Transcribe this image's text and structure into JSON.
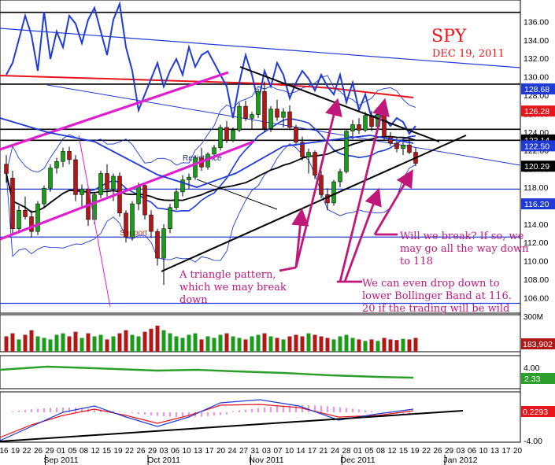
{
  "chart_data": [
    {
      "type": "candlestick",
      "title": "SPY",
      "subtitle": "DEC 19, 2011",
      "ylim": [
        104.5,
        138
      ],
      "y_ticks": [
        106,
        108,
        110,
        112,
        114,
        116,
        118,
        120,
        122,
        124,
        126,
        128,
        130,
        132,
        134,
        136
      ],
      "y_tick_labels": [
        "106.00",
        "108.00",
        "110.00",
        "112.00",
        "114.00",
        "116.00",
        "118.00",
        "120.00",
        "122.00",
        "124.00",
        "126.00",
        "128.00",
        "130.00",
        "132.00",
        "134.00",
        "136.00"
      ],
      "price_tags": [
        {
          "value": 128.68,
          "label": "128.68",
          "color": "#1f3ad6"
        },
        {
          "value": 126.28,
          "label": "126.28",
          "color": "#e8141c"
        },
        {
          "value": 123.14,
          "label": "123.14",
          "color": "#000000"
        },
        {
          "value": 122.5,
          "label": "122.50",
          "color": "#1f3ad6"
        },
        {
          "value": 120.29,
          "label": "120.29",
          "color": "#000000"
        },
        {
          "value": 116.2,
          "label": "116.20",
          "color": "#1f3ad6"
        }
      ],
      "horizontal_levels": [
        137,
        129.2,
        124.3,
        123.1,
        117.8,
        112.6,
        105.4
      ],
      "level_labels": [
        {
          "text": "Resistance",
          "value": 120.9,
          "day_index": 28
        },
        {
          "text": "Support",
          "value": 112.8,
          "day_index": 18
        }
      ],
      "candles": [
        {
          "o": 120.5,
          "h": 121.5,
          "l": 118.5,
          "c": 119.5
        },
        {
          "o": 119,
          "h": 119.8,
          "l": 112.8,
          "c": 113.5
        },
        {
          "o": 113.5,
          "h": 116,
          "l": 113,
          "c": 115.5
        },
        {
          "o": 115.5,
          "h": 117,
          "l": 114.5,
          "c": 114.8
        },
        {
          "o": 114.8,
          "h": 115.5,
          "l": 112.6,
          "c": 113.2
        },
        {
          "o": 113.2,
          "h": 116.5,
          "l": 112.8,
          "c": 116.2
        },
        {
          "o": 116.2,
          "h": 118.2,
          "l": 115.8,
          "c": 117.9
        },
        {
          "o": 117.9,
          "h": 120.5,
          "l": 117.5,
          "c": 120.1
        },
        {
          "o": 120.1,
          "h": 121.2,
          "l": 119.5,
          "c": 120.8
        },
        {
          "o": 120.8,
          "h": 122.3,
          "l": 120.2,
          "c": 121.9
        },
        {
          "o": 121.9,
          "h": 122.4,
          "l": 120.5,
          "c": 121
        },
        {
          "o": 121,
          "h": 121.5,
          "l": 116.5,
          "c": 117.2
        },
        {
          "o": 117.2,
          "h": 118.3,
          "l": 115.8,
          "c": 117.8
        },
        {
          "o": 117.8,
          "h": 118.2,
          "l": 113.8,
          "c": 114.5
        },
        {
          "o": 114.5,
          "h": 117.5,
          "l": 114,
          "c": 117.2
        },
        {
          "o": 117.2,
          "h": 119.8,
          "l": 116.8,
          "c": 119.5
        },
        {
          "o": 119.5,
          "h": 120.5,
          "l": 117,
          "c": 117.8
        },
        {
          "o": 117.8,
          "h": 119.5,
          "l": 116.5,
          "c": 119.2
        },
        {
          "o": 119.2,
          "h": 119.6,
          "l": 114.8,
          "c": 115.2
        },
        {
          "o": 115.2,
          "h": 115.5,
          "l": 112,
          "c": 112.6
        },
        {
          "o": 112.6,
          "h": 116.5,
          "l": 112.2,
          "c": 116.2
        },
        {
          "o": 116.2,
          "h": 118.5,
          "l": 115.5,
          "c": 118.2
        },
        {
          "o": 118.2,
          "h": 118.5,
          "l": 114.5,
          "c": 115
        },
        {
          "o": 115,
          "h": 115.5,
          "l": 112.5,
          "c": 113.2
        },
        {
          "o": 113.2,
          "h": 113.5,
          "l": 109.5,
          "c": 110.3
        },
        {
          "o": 110.3,
          "h": 114,
          "l": 107.4,
          "c": 113.5
        },
        {
          "o": 113.5,
          "h": 116.2,
          "l": 113,
          "c": 115.8
        },
        {
          "o": 115.8,
          "h": 117.9,
          "l": 115.5,
          "c": 117.5
        },
        {
          "o": 117.5,
          "h": 119.3,
          "l": 117,
          "c": 118.8
        },
        {
          "o": 118.8,
          "h": 119.5,
          "l": 117.8,
          "c": 119.1
        },
        {
          "o": 119.1,
          "h": 121.5,
          "l": 118.8,
          "c": 121.2
        },
        {
          "o": 121.2,
          "h": 122.3,
          "l": 119.8,
          "c": 120.2
        },
        {
          "o": 120.2,
          "h": 121.8,
          "l": 119.9,
          "c": 121.6
        },
        {
          "o": 121.6,
          "h": 122.6,
          "l": 121,
          "c": 122.3
        },
        {
          "o": 122.3,
          "h": 124.8,
          "l": 122,
          "c": 124.5
        },
        {
          "o": 124.5,
          "h": 125.2,
          "l": 122.8,
          "c": 123.1
        },
        {
          "o": 123.1,
          "h": 124.5,
          "l": 122.9,
          "c": 124.2
        },
        {
          "o": 124.2,
          "h": 127.2,
          "l": 124,
          "c": 126.8
        },
        {
          "o": 126.8,
          "h": 127.4,
          "l": 125.2,
          "c": 125.5
        },
        {
          "o": 125.5,
          "h": 126.2,
          "l": 124.3,
          "c": 125.9
        },
        {
          "o": 125.9,
          "h": 128.7,
          "l": 125.5,
          "c": 128.4
        },
        {
          "o": 128.4,
          "h": 129.5,
          "l": 124,
          "c": 124.4
        },
        {
          "o": 124.4,
          "h": 126.8,
          "l": 124,
          "c": 126.5
        },
        {
          "o": 126.5,
          "h": 127.5,
          "l": 125.2,
          "c": 125.6
        },
        {
          "o": 125.6,
          "h": 126.6,
          "l": 124.5,
          "c": 126.2
        },
        {
          "o": 126.2,
          "h": 126.9,
          "l": 124.2,
          "c": 124.5
        },
        {
          "o": 124.5,
          "h": 124.8,
          "l": 122.5,
          "c": 122.9
        },
        {
          "o": 122.9,
          "h": 123.5,
          "l": 120.9,
          "c": 121.3
        },
        {
          "o": 121.3,
          "h": 122.2,
          "l": 119.5,
          "c": 121.8
        },
        {
          "o": 121.8,
          "h": 122,
          "l": 118.9,
          "c": 119.3
        },
        {
          "o": 119.3,
          "h": 119.8,
          "l": 116.8,
          "c": 117.2
        },
        {
          "o": 117.2,
          "h": 117.9,
          "l": 115.5,
          "c": 116.3
        },
        {
          "o": 116.3,
          "h": 118.8,
          "l": 116,
          "c": 118.6
        },
        {
          "o": 118.6,
          "h": 120,
          "l": 118,
          "c": 119.7
        },
        {
          "o": 119.7,
          "h": 124.2,
          "l": 119.5,
          "c": 124.1
        },
        {
          "o": 124.1,
          "h": 125.3,
          "l": 123.2,
          "c": 124.8
        },
        {
          "o": 124.8,
          "h": 125.5,
          "l": 123.8,
          "c": 124.2
        },
        {
          "o": 124.2,
          "h": 126.2,
          "l": 124,
          "c": 125.8
        },
        {
          "o": 125.8,
          "h": 126.3,
          "l": 124.1,
          "c": 124.6
        },
        {
          "o": 124.6,
          "h": 126.4,
          "l": 124.3,
          "c": 125.9
        },
        {
          "o": 125.9,
          "h": 126.2,
          "l": 123.1,
          "c": 123.5
        },
        {
          "o": 123.5,
          "h": 124,
          "l": 122.5,
          "c": 122.8
        },
        {
          "o": 122.8,
          "h": 123.5,
          "l": 121.8,
          "c": 122.2
        },
        {
          "o": 122.2,
          "h": 122.9,
          "l": 121.5,
          "c": 122.6
        },
        {
          "o": 122.6,
          "h": 123.4,
          "l": 121.6,
          "c": 121.8
        },
        {
          "o": 121.8,
          "h": 122.3,
          "l": 120.3,
          "c": 120.6
        }
      ],
      "x_tick_labels": [
        "16",
        "19",
        "22",
        "26",
        "29",
        "01",
        "05",
        "08",
        "12",
        "15",
        "19",
        "22",
        "26",
        "29",
        "03",
        "06",
        "10",
        "13",
        "17",
        "20",
        "24",
        "27",
        "31",
        "03",
        "07",
        "10",
        "14",
        "17",
        "21",
        "24",
        "28",
        "01",
        "05",
        "08",
        "12",
        "15",
        "19",
        "22",
        "26",
        "29",
        "03",
        "06",
        "10",
        "13",
        "17",
        "20"
      ],
      "month_labels": [
        {
          "text": "Sep 2011",
          "tick_index": 5
        },
        {
          "text": "Oct 2011",
          "tick_index": 14
        },
        {
          "text": "Nov 2011",
          "tick_index": 23
        },
        {
          "text": "Dec 2011",
          "tick_index": 31
        },
        {
          "text": "Jan 2012",
          "tick_index": 40
        }
      ]
    },
    {
      "type": "bar",
      "name": "volume",
      "value_tag": "183,902",
      "top_tag": "300M",
      "values": [
        0.5,
        0.6,
        0.4,
        0.55,
        0.7,
        0.5,
        0.45,
        0.4,
        0.55,
        0.6,
        0.5,
        0.65,
        0.45,
        0.6,
        0.5,
        0.55,
        0.4,
        0.5,
        0.6,
        0.7,
        0.55,
        0.5,
        0.65,
        0.75,
        0.85,
        0.7,
        0.6,
        0.5,
        0.45,
        0.55,
        0.6,
        0.4,
        0.5,
        0.45,
        0.55,
        0.6,
        0.5,
        0.45,
        0.4,
        0.5,
        0.55,
        0.6,
        0.5,
        0.45,
        0.4,
        0.5,
        0.55,
        0.5,
        0.6,
        0.55,
        0.5,
        0.45,
        0.4,
        0.5,
        0.55,
        0.45,
        0.4,
        0.35,
        0.4,
        0.35,
        0.45,
        0.4,
        0.38,
        0.42,
        0.4,
        0.45
      ]
    },
    {
      "type": "line",
      "name": "indicator",
      "tick_label": "4.00",
      "value_tag": "2.33",
      "color": "#2aa02a"
    },
    {
      "type": "line",
      "name": "macd",
      "tick_label": "-4.00",
      "value_tag": "0.2293"
    }
  ],
  "annotations": {
    "triangle": [
      "A triangle pattern,",
      "which we may break",
      "down"
    ],
    "breakout": [
      "Will we break? If so, we",
      "may go all the way down",
      "to 118"
    ],
    "bollinger": [
      "We can even drop down to",
      "lower Bollinger Band at 116.",
      "20 if the trading will be wild"
    ]
  },
  "colors": {
    "price_blue": "#1f3ad6",
    "ma_red": "#e8141c",
    "trend_magenta": "#e020d0",
    "arrow_magenta": "#c0187a",
    "up_candle": "#1b9b1b",
    "down_candle": "#b01818"
  }
}
